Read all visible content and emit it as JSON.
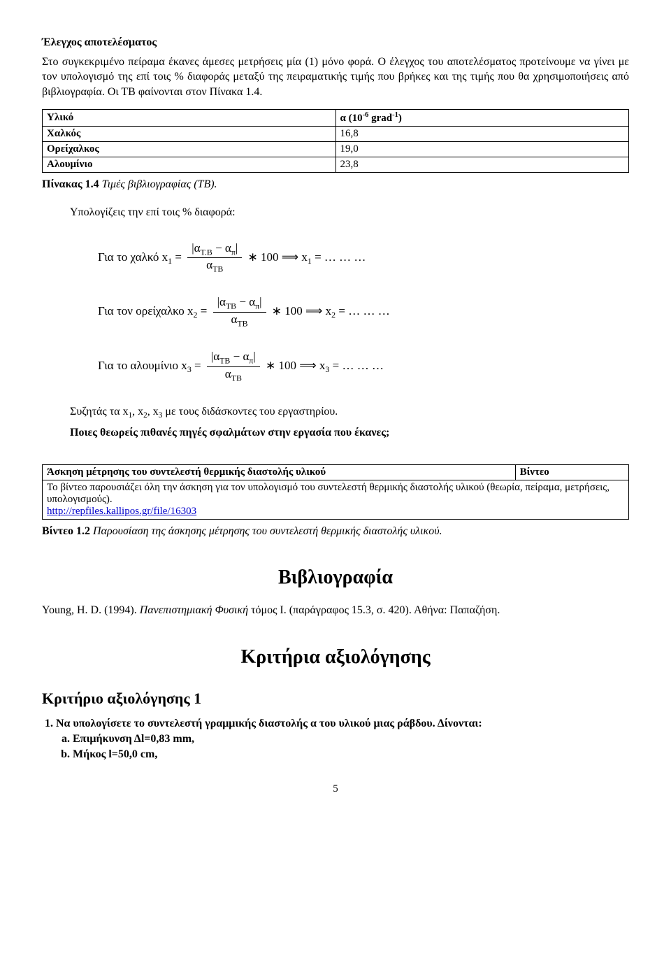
{
  "elegxos": {
    "heading": "Έλεγχος αποτελέσματος",
    "paragraph": "Στο συγκεκριμένο πείραμα έκανες άμεσες μετρήσεις μία (1) μόνο φορά. Ο έλεγχος του αποτελέσματος προτείνουμε να γίνει με τον υπολογισμό της επί τοις % διαφοράς μεταξύ της πειραματικής τιμής που βρήκες και της τιμής που θα χρησιμοποιήσεις από βιβλιογραφία. Οι ΤΒ φαίνονται στον Πίνακα 1.4."
  },
  "material_table": {
    "columns": [
      "Υλικό",
      "α (10"
    ],
    "col2_exp": "-6",
    "col2_unit": " grad",
    "col2_exp2": "-1",
    "col2_close": ")",
    "rows": [
      [
        "Χαλκός",
        "16,8"
      ],
      [
        "Ορείχαλκος",
        "19,0"
      ],
      [
        "Αλουμίνιο",
        "23,8"
      ]
    ],
    "caption_bold": "Πίνακας 1.4",
    "caption_rest": " Τιμές βιβλιογραφίας (ΤΒ)."
  },
  "calc": {
    "intro": "Υπολογίζεις την επί τοις % διαφορά:",
    "f1_label": "Για το χαλκό x",
    "f1_num": "|α",
    "f1_num_sub1": "Τ.Β",
    "f1_minus": " − α",
    "f1_num_sub2": "π",
    "f1_num_close": "|",
    "f1_den": "α",
    "f1_den_sub": "ΤΒ",
    "f1_tail": " ∗ 100 ⟹ x",
    "f1_tail_end": " = … … …",
    "f2_label": "Για τον ορείχαλκο x",
    "f3_label": "Για το αλουμίνιο x"
  },
  "discuss": {
    "line1a": "Συζητάς τα x",
    "line1b": ", x",
    "line1c": ", x",
    "line1d": " με τους διδάσκοντες του εργαστηρίου.",
    "line2": "Ποιες θεωρείς πιθανές πηγές σφαλμάτων στην εργασία που έκανες;"
  },
  "video_table": {
    "cell1": "Άσκηση μέτρησης του συντελεστή θερμικής διαστολής υλικού",
    "cell2": "Βίντεο",
    "body": "Το βίντεο παρουσιάζει όλη την άσκηση για τον υπολογισμό του συντελεστή θερμικής διαστολής υλικού (θεωρία, πείραμα, μετρήσεις, υπολογισμούς).",
    "link": "http://repfiles.kallipos.gr/file/16303",
    "caption_bold": "Βίντεο 1.2",
    "caption_rest": " Παρουσίαση της άσκησης μέτρησης του συντελεστή θερμικής διαστολής υλικού."
  },
  "bib": {
    "heading": "Βιβλιογραφία",
    "entry_a": "Young, H. D. (1994). ",
    "entry_it": "Πανεπιστημιακή Φυσική",
    "entry_b": " τόμος Ι. (παράγραφος 15.3, σ. 420). Αθήνα: Παπαζήση."
  },
  "criteria": {
    "heading": "Κριτήρια αξιολόγησης",
    "sub_heading": "Κριτήριο αξιολόγησης 1",
    "item1": "Να υπολογίσετε το συντελεστή γραμμικής διαστολής α του υλικού μιας ράβδου. Δίνονται:",
    "item1a": "Επιμήκυνση Δl=0,83 mm,",
    "item1b": "Μήκος l=50,0 cm,"
  },
  "page_number": "5"
}
